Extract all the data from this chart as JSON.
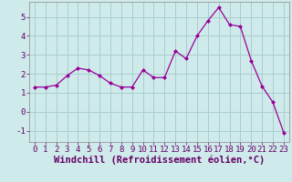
{
  "x": [
    0,
    1,
    2,
    3,
    4,
    5,
    6,
    7,
    8,
    9,
    10,
    11,
    12,
    13,
    14,
    15,
    16,
    17,
    18,
    19,
    20,
    21,
    22,
    23
  ],
  "y": [
    1.3,
    1.3,
    1.4,
    1.9,
    2.3,
    2.2,
    1.9,
    1.5,
    1.3,
    1.3,
    2.2,
    1.8,
    1.8,
    3.2,
    2.8,
    4.0,
    4.8,
    5.5,
    4.6,
    4.5,
    2.7,
    1.35,
    0.5,
    -1.1
  ],
  "line_color": "#990099",
  "marker_color": "#990099",
  "bg_color": "#ceeaea",
  "grid_color": "#aacece",
  "xlabel": "Windchill (Refroidissement éolien,°C)",
  "xlim": [
    -0.5,
    23.5
  ],
  "ylim": [
    -1.6,
    5.8
  ],
  "yticks": [
    -1,
    0,
    1,
    2,
    3,
    4,
    5
  ],
  "xticks": [
    0,
    1,
    2,
    3,
    4,
    5,
    6,
    7,
    8,
    9,
    10,
    11,
    12,
    13,
    14,
    15,
    16,
    17,
    18,
    19,
    20,
    21,
    22,
    23
  ],
  "tick_fontsize": 6.5,
  "xlabel_fontsize": 7.5
}
